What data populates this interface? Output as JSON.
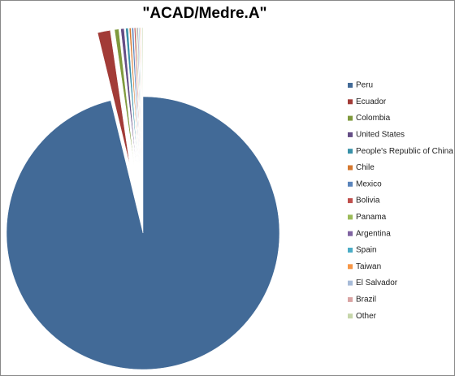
{
  "chart_data": {
    "type": "pie",
    "title": "\"ACAD/Medre.A\"",
    "categories": [
      "Peru",
      "Ecuador",
      "Colombia",
      "United States",
      "People's Republic of China",
      "Chile",
      "Mexico",
      "Bolivia",
      "Panama",
      "Argentina",
      "Spain",
      "Taiwan",
      "El Salvador",
      "Brazil",
      "Other"
    ],
    "values": [
      96.2,
      1.5,
      0.5,
      0.4,
      0.3,
      0.2,
      0.2,
      0.15,
      0.1,
      0.1,
      0.08,
      0.07,
      0.05,
      0.05,
      0.1
    ],
    "colors": [
      "#426a97",
      "#a23b37",
      "#7f9a3d",
      "#644d85",
      "#3991a8",
      "#d5782f",
      "#5a84bb",
      "#bf4f4c",
      "#9bbb59",
      "#8064a2",
      "#4bacc6",
      "#f79646",
      "#a7bbd8",
      "#d9a4a3",
      "#c6d6aa"
    ],
    "legend": "right"
  }
}
